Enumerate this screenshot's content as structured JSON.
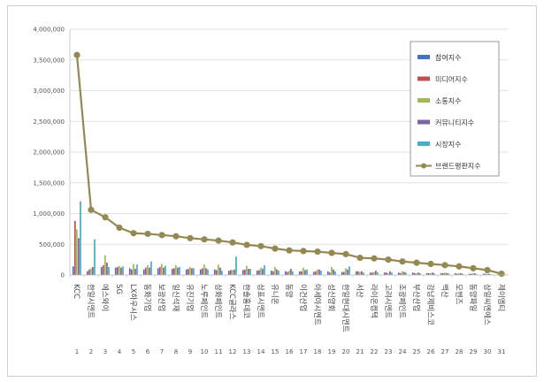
{
  "chart_data": {
    "type": "bar",
    "title": "",
    "xlabel": "",
    "ylabel": "",
    "ylim": [
      0,
      4000000
    ],
    "yticks": [
      0,
      500000,
      1000000,
      1500000,
      2000000,
      2500000,
      3000000,
      3500000,
      4000000
    ],
    "ytick_labels": [
      "0",
      "500,000",
      "1,000,000",
      "1,500,000",
      "2,000,000",
      "2,500,000",
      "3,000,000",
      "3,500,000",
      "4,000,000"
    ],
    "grid": true,
    "legend_position": "top-right",
    "index_labels": [
      "1",
      "2",
      "3",
      "4",
      "5",
      "6",
      "7",
      "8",
      "9",
      "10",
      "11",
      "12",
      "13",
      "14",
      "15",
      "16",
      "17",
      "18",
      "19",
      "20",
      "21",
      "22",
      "23",
      "24",
      "25",
      "26",
      "27",
      "28",
      "29",
      "30",
      "31"
    ],
    "categories": [
      "KCC",
      "한일시멘트",
      "에스와이",
      "SG",
      "LX하우시스",
      "동화기업",
      "보광산업",
      "일신석재",
      "유진기업",
      "노루페인트",
      "삼화페인트",
      "KCC글라스",
      "한솔홈데코",
      "삼표시멘트",
      "유니온",
      "동양",
      "이건산업",
      "아세아시멘트",
      "성신양회",
      "한일현대시멘트",
      "서산",
      "라이온켐텍",
      "고려시멘트",
      "조광페인트",
      "부산산업",
      "강남제비스코",
      "백산",
      "모헨즈",
      "동양파일",
      "삼일씨엔에스",
      "제이엠티"
    ],
    "series": [
      {
        "name": "참여지수",
        "kind": "bar",
        "color": "#4472c4",
        "values": [
          140000,
          60000,
          130000,
          120000,
          110000,
          90000,
          110000,
          100000,
          90000,
          90000,
          90000,
          70000,
          80000,
          70000,
          70000,
          60000,
          60000,
          50000,
          60000,
          50000,
          60000,
          40000,
          40000,
          40000,
          40000,
          30000,
          30000,
          30000,
          20000,
          20000,
          10000
        ]
      },
      {
        "name": "미디어지수",
        "kind": "bar",
        "color": "#c0504d",
        "values": [
          880000,
          90000,
          160000,
          130000,
          90000,
          120000,
          130000,
          110000,
          100000,
          110000,
          80000,
          80000,
          90000,
          80000,
          60000,
          50000,
          60000,
          60000,
          40000,
          50000,
          60000,
          40000,
          40000,
          30000,
          30000,
          30000,
          30000,
          20000,
          20000,
          20000,
          10000
        ]
      },
      {
        "name": "소통지수",
        "kind": "bar",
        "color": "#9bbb59",
        "values": [
          740000,
          110000,
          320000,
          150000,
          180000,
          160000,
          180000,
          160000,
          130000,
          170000,
          170000,
          80000,
          150000,
          120000,
          130000,
          70000,
          120000,
          90000,
          130000,
          110000,
          50000,
          50000,
          30000,
          60000,
          30000,
          30000,
          40000,
          30000,
          30000,
          20000,
          10000
        ]
      },
      {
        "name": "커뮤니티지수",
        "kind": "bar",
        "color": "#8064a2",
        "values": [
          600000,
          130000,
          200000,
          120000,
          100000,
          120000,
          120000,
          120000,
          110000,
          110000,
          120000,
          90000,
          100000,
          100000,
          90000,
          100000,
          80000,
          90000,
          90000,
          90000,
          60000,
          70000,
          60000,
          50000,
          40000,
          40000,
          30000,
          30000,
          30000,
          20000,
          10000
        ]
      },
      {
        "name": "시장지수",
        "kind": "bar",
        "color": "#4bacc6",
        "values": [
          1200000,
          580000,
          130000,
          140000,
          170000,
          220000,
          150000,
          130000,
          110000,
          90000,
          70000,
          300000,
          100000,
          160000,
          70000,
          60000,
          90000,
          70000,
          60000,
          140000,
          40000,
          40000,
          40000,
          40000,
          30000,
          30000,
          30000,
          20000,
          10000,
          10000,
          10000
        ]
      },
      {
        "name": "브랜드평판지수",
        "kind": "line",
        "color": "#938953",
        "values": [
          3580000,
          1060000,
          940000,
          770000,
          680000,
          670000,
          650000,
          630000,
          600000,
          580000,
          560000,
          530000,
          490000,
          470000,
          430000,
          400000,
          390000,
          380000,
          360000,
          340000,
          280000,
          270000,
          250000,
          220000,
          200000,
          180000,
          160000,
          140000,
          110000,
          80000,
          20000
        ]
      }
    ]
  }
}
